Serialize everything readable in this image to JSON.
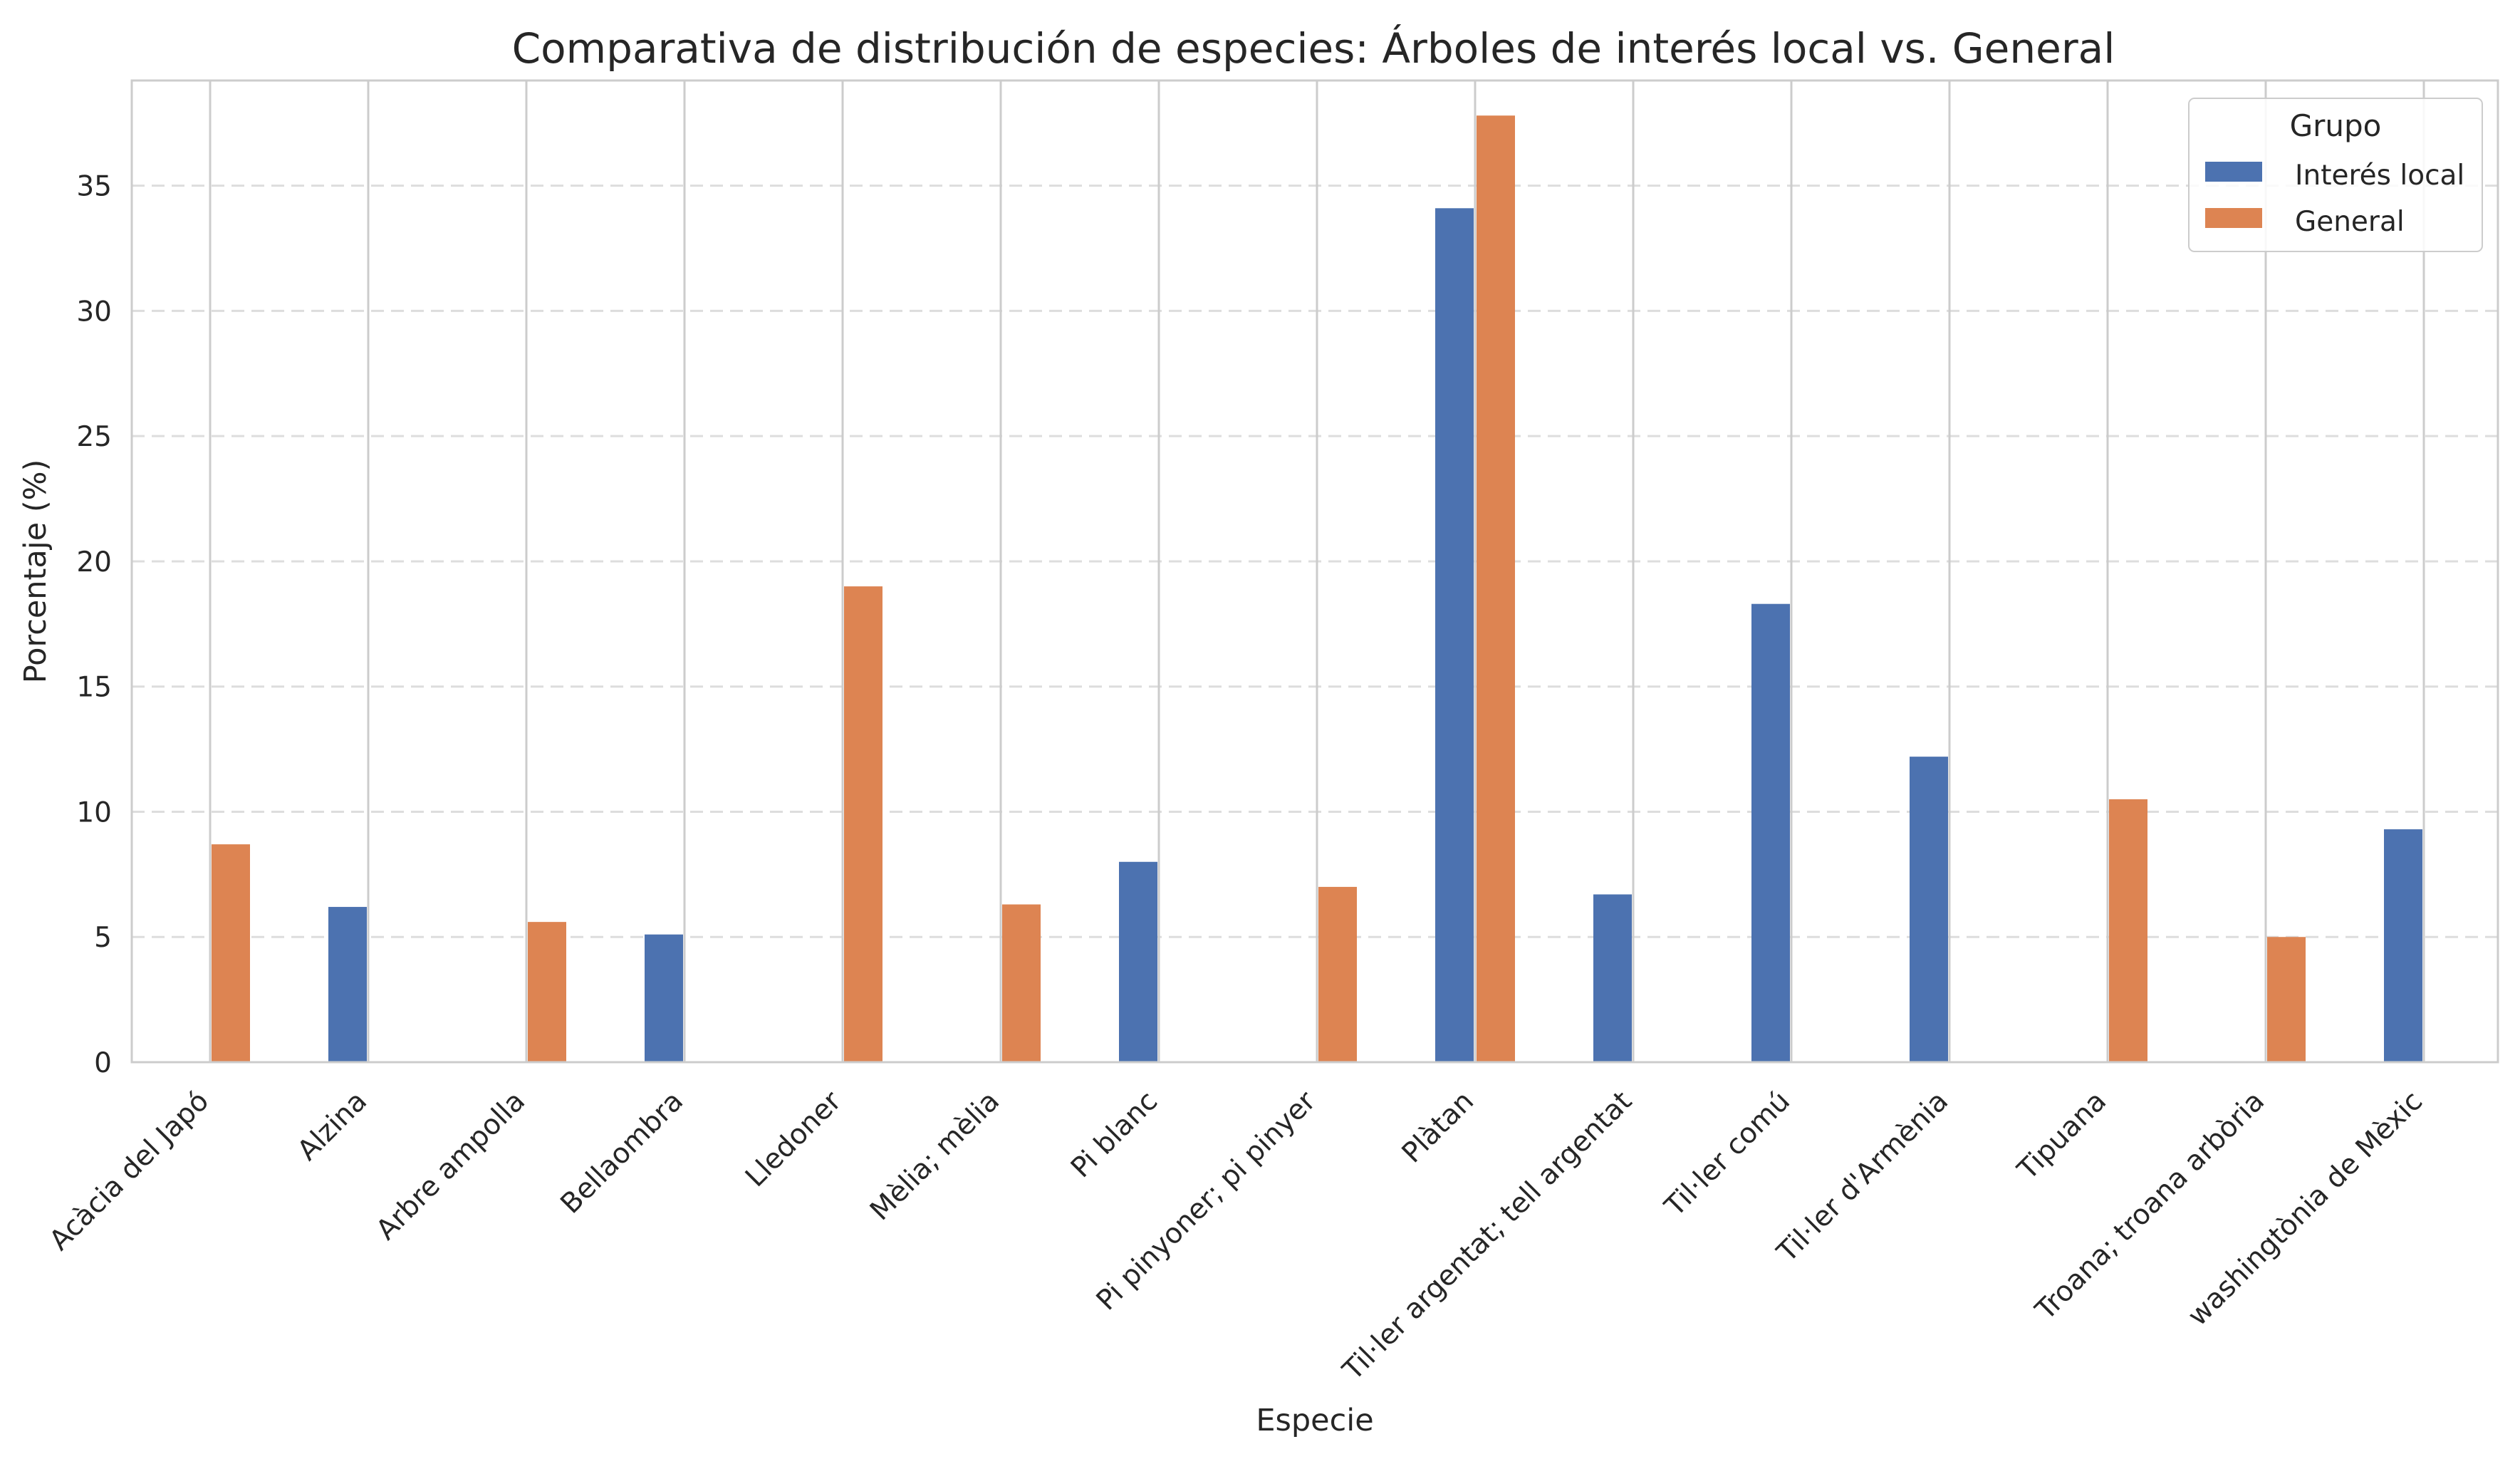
{
  "chart_data": {
    "type": "bar",
    "title": "Comparativa de distribución de especies: Árboles de interés local vs. General",
    "xlabel": "Especie",
    "ylabel": "Porcentaje (%)",
    "ylim": [
      0,
      39.2
    ],
    "yticks": [
      0,
      5,
      10,
      15,
      20,
      25,
      30,
      35
    ],
    "grid": "y-dashed",
    "legend_title": "Grupo",
    "legend_position": "top-right",
    "categories": [
      "Acàcia del Japó",
      "Alzina",
      "Arbre ampolla",
      "Bellaombra",
      "Lledoner",
      "Mèlia; mèlia",
      "Pi blanc",
      "Pi pinyoner; pi pinyer",
      "Plàtan",
      "Til·ler argentat; tell argentat",
      "Til·ler comú",
      "Til·ler d'Armènia",
      "Tipuana",
      "Troana; troana arbòria",
      "washingtònia de Mèxic"
    ],
    "series": [
      {
        "name": "Interés local",
        "color": "#4c72b0",
        "values": [
          null,
          6.2,
          null,
          5.1,
          null,
          null,
          8.0,
          null,
          34.1,
          6.7,
          18.3,
          12.2,
          null,
          null,
          9.3
        ]
      },
      {
        "name": "General",
        "color": "#dd8452",
        "values": [
          8.7,
          null,
          5.6,
          null,
          19.0,
          6.3,
          null,
          7.0,
          37.8,
          null,
          null,
          null,
          10.5,
          5.0,
          null
        ]
      }
    ]
  }
}
